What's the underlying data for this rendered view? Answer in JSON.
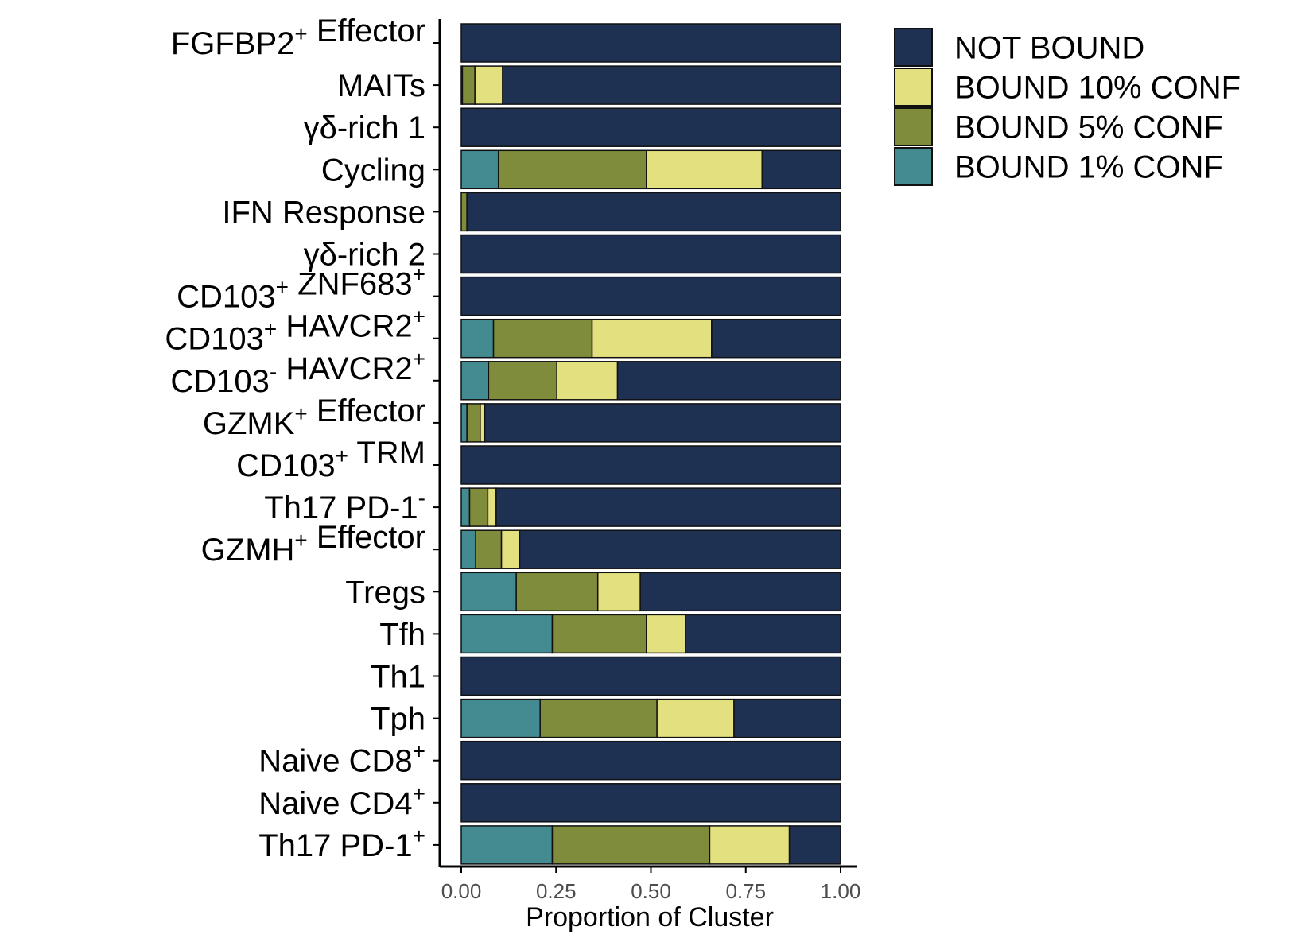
{
  "chart_data": {
    "type": "bar",
    "orientation": "horizontal",
    "stacked": true,
    "xlabel": "Proportion of Cluster",
    "ylabel": "",
    "xlim": [
      0,
      1
    ],
    "x_ticks": [
      "0.00",
      "0.25",
      "0.50",
      "0.75",
      "1.00"
    ],
    "x_tick_values": [
      0,
      0.25,
      0.5,
      0.75,
      1.0
    ],
    "grid": false,
    "legend_position": "top-right",
    "categories": [
      {
        "base": "FGFBP2",
        "sup": "+",
        "rest": " Effector",
        "rest_sup": ""
      },
      {
        "base": "MAITs",
        "sup": "",
        "rest": "",
        "rest_sup": ""
      },
      {
        "base": "γδ-rich 1",
        "sup": "",
        "rest": "",
        "rest_sup": ""
      },
      {
        "base": "Cycling",
        "sup": "",
        "rest": "",
        "rest_sup": ""
      },
      {
        "base": "IFN Response",
        "sup": "",
        "rest": "",
        "rest_sup": ""
      },
      {
        "base": "γδ-rich 2",
        "sup": "",
        "rest": "",
        "rest_sup": ""
      },
      {
        "base": "CD103",
        "sup": "+",
        "rest": " ZNF683",
        "rest_sup": "+"
      },
      {
        "base": "CD103",
        "sup": "+",
        "rest": " HAVCR2",
        "rest_sup": "+"
      },
      {
        "base": "CD103",
        "sup": "-",
        "rest": " HAVCR2",
        "rest_sup": "+"
      },
      {
        "base": "GZMK",
        "sup": "+",
        "rest": " Effector",
        "rest_sup": ""
      },
      {
        "base": "CD103",
        "sup": "+",
        "rest": " TRM",
        "rest_sup": ""
      },
      {
        "base": "Th17 PD-1",
        "sup": "-",
        "rest": "",
        "rest_sup": ""
      },
      {
        "base": "GZMH",
        "sup": "+",
        "rest": " Effector",
        "rest_sup": ""
      },
      {
        "base": "Tregs",
        "sup": "",
        "rest": "",
        "rest_sup": ""
      },
      {
        "base": "Tfh",
        "sup": "",
        "rest": "",
        "rest_sup": ""
      },
      {
        "base": "Th1",
        "sup": "",
        "rest": "",
        "rest_sup": ""
      },
      {
        "base": "Tph",
        "sup": "",
        "rest": "",
        "rest_sup": ""
      },
      {
        "base": "Naive CD8",
        "sup": "+",
        "rest": "",
        "rest_sup": ""
      },
      {
        "base": "Naive CD4",
        "sup": "+",
        "rest": "",
        "rest_sup": ""
      },
      {
        "base": "Th17 PD-1",
        "sup": "+",
        "rest": "",
        "rest_sup": ""
      }
    ],
    "series": [
      {
        "name": "BOUND 1% CONF",
        "color": "#438a91",
        "values": [
          0.0,
          0.003,
          0.0,
          0.098,
          0.0,
          0.0,
          0.0,
          0.085,
          0.072,
          0.015,
          0.0,
          0.022,
          0.038,
          0.145,
          0.24,
          0.0,
          0.208,
          0.0,
          0.0,
          0.24
        ]
      },
      {
        "name": "BOUND 5% CONF",
        "color": "#7e8c3b",
        "values": [
          0.0,
          0.033,
          0.0,
          0.39,
          0.015,
          0.0,
          0.0,
          0.26,
          0.18,
          0.035,
          0.0,
          0.048,
          0.068,
          0.215,
          0.248,
          0.0,
          0.308,
          0.0,
          0.0,
          0.415
        ]
      },
      {
        "name": "BOUND 10% CONF",
        "color": "#e3e07f",
        "values": [
          0.0,
          0.073,
          0.0,
          0.305,
          0.0,
          0.0,
          0.0,
          0.315,
          0.16,
          0.012,
          0.0,
          0.022,
          0.048,
          0.112,
          0.103,
          0.0,
          0.203,
          0.0,
          0.0,
          0.21
        ]
      },
      {
        "name": "NOT BOUND",
        "color": "#1e3152",
        "values": [
          1.0,
          0.891,
          1.0,
          0.207,
          0.985,
          1.0,
          1.0,
          0.34,
          0.588,
          0.938,
          1.0,
          0.908,
          0.846,
          0.528,
          0.409,
          1.0,
          0.281,
          1.0,
          1.0,
          0.135
        ]
      }
    ],
    "legend_order": [
      "NOT BOUND",
      "BOUND 10% CONF",
      "BOUND 5% CONF",
      "BOUND 1% CONF"
    ]
  }
}
